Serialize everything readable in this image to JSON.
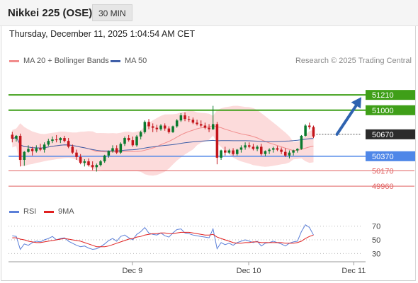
{
  "header": {
    "title": "Nikkei 225 (OSE)",
    "interval": "30 MIN"
  },
  "timestamp": "Thursday, December 11, 2025 1:04:54 AM CET",
  "legend": {
    "bollinger": "MA 20 + Bollinger Bands",
    "ma50": "MA 50",
    "credit": "Research © 2025 Trading Central",
    "rsi": "RSI",
    "rsi_ma": "9MA"
  },
  "colors": {
    "candle_up": "#0a7a2e",
    "candle_down": "#c3151b",
    "band_fill": "#fbd5d5",
    "ma20": "#f18c8c",
    "ma50": "#3f5fa8",
    "resistance": "#3f9f18",
    "pivot": "#4f87e8",
    "support": "#e06060",
    "arrow": "#2f63b0",
    "rsi": "#5b7fd8",
    "rsi_ma": "#e02020"
  },
  "chart_data": [
    {
      "type": "candlestick",
      "ylim": [
        49700,
        51560
      ],
      "xlim": [
        0,
        94
      ],
      "x_tick_labels": [
        {
          "x": 33,
          "label": "Dec 9"
        },
        {
          "x": 64,
          "label": "Dec 10"
        },
        {
          "x": 92,
          "label": "Dec 11"
        }
      ],
      "candles": [
        [
          50665,
          50705,
          50560,
          50610
        ],
        [
          50610,
          50660,
          50570,
          50650
        ],
        [
          50650,
          50680,
          50230,
          50320
        ],
        [
          50320,
          50440,
          50240,
          50430
        ],
        [
          50430,
          50520,
          50420,
          50470
        ],
        [
          50470,
          50500,
          50380,
          50440
        ],
        [
          50440,
          50520,
          50420,
          50480
        ],
        [
          50480,
          50540,
          50440,
          50460
        ],
        [
          50460,
          50560,
          50420,
          50530
        ],
        [
          50530,
          50610,
          50510,
          50580
        ],
        [
          50580,
          50640,
          50550,
          50600
        ],
        [
          50600,
          50660,
          50560,
          50590
        ],
        [
          50590,
          50630,
          50550,
          50620
        ],
        [
          50620,
          50650,
          50560,
          50580
        ],
        [
          50580,
          50620,
          50480,
          50500
        ],
        [
          50500,
          50530,
          50400,
          50420
        ],
        [
          50420,
          50460,
          50320,
          50360
        ],
        [
          50360,
          50400,
          50260,
          50280
        ],
        [
          50280,
          50330,
          50230,
          50300
        ],
        [
          50300,
          50340,
          50230,
          50250
        ],
        [
          50250,
          50300,
          50180,
          50220
        ],
        [
          50220,
          50270,
          50160,
          50250
        ],
        [
          50250,
          50320,
          50230,
          50300
        ],
        [
          50300,
          50390,
          50280,
          50380
        ],
        [
          50380,
          50450,
          50350,
          50440
        ],
        [
          50440,
          50520,
          50420,
          50480
        ],
        [
          50480,
          50520,
          50400,
          50420
        ],
        [
          50420,
          50560,
          50400,
          50540
        ],
        [
          50540,
          50640,
          50510,
          50620
        ],
        [
          50620,
          50660,
          50570,
          50590
        ],
        [
          50590,
          50640,
          50500,
          50520
        ],
        [
          50520,
          50660,
          50500,
          50640
        ],
        [
          50640,
          50720,
          50600,
          50700
        ],
        [
          50700,
          50860,
          50680,
          50840
        ],
        [
          50840,
          50880,
          50740,
          50780
        ],
        [
          50780,
          50820,
          50700,
          50760
        ],
        [
          50760,
          50800,
          50700,
          50740
        ],
        [
          50740,
          50810,
          50720,
          50790
        ],
        [
          50790,
          50820,
          50720,
          50750
        ],
        [
          50750,
          50780,
          50680,
          50700
        ],
        [
          50700,
          50790,
          50690,
          50780
        ],
        [
          50780,
          50880,
          50760,
          50860
        ],
        [
          50860,
          50960,
          50840,
          50930
        ],
        [
          50930,
          50970,
          50850,
          50880
        ],
        [
          50880,
          50920,
          50840,
          50870
        ],
        [
          50870,
          50900,
          50810,
          50830
        ],
        [
          50830,
          50870,
          50790,
          50810
        ],
        [
          50810,
          50860,
          50770,
          50790
        ],
        [
          50790,
          50830,
          50740,
          50760
        ],
        [
          50760,
          50810,
          50700,
          50740
        ],
        [
          50740,
          51060,
          50730,
          50810
        ],
        [
          50810,
          50840,
          50260,
          50350
        ],
        [
          50350,
          50460,
          50320,
          50450
        ],
        [
          50450,
          50500,
          50380,
          50420
        ],
        [
          50420,
          50470,
          50400,
          50450
        ],
        [
          50450,
          50480,
          50380,
          50400
        ],
        [
          50400,
          50470,
          50380,
          50460
        ],
        [
          50460,
          50520,
          50420,
          50490
        ],
        [
          50490,
          50560,
          50460,
          50520
        ],
        [
          50520,
          50560,
          50480,
          50500
        ],
        [
          50500,
          50540,
          50450,
          50470
        ],
        [
          50470,
          50520,
          50440,
          50500
        ],
        [
          50500,
          50540,
          50380,
          50400
        ],
        [
          50400,
          50450,
          50370,
          50440
        ],
        [
          50440,
          50480,
          50400,
          50460
        ],
        [
          50460,
          50500,
          50420,
          50480
        ],
        [
          50480,
          50510,
          50440,
          50460
        ],
        [
          50460,
          50490,
          50400,
          50430
        ],
        [
          50430,
          50480,
          50360,
          50380
        ],
        [
          50380,
          50450,
          50340,
          50420
        ],
        [
          50420,
          50460,
          50380,
          50450
        ],
        [
          50450,
          50480,
          50420,
          50470
        ],
        [
          50470,
          50660,
          50460,
          50650
        ],
        [
          50650,
          50810,
          50640,
          50790
        ],
        [
          50790,
          50830,
          50740,
          50770
        ],
        [
          50770,
          50790,
          50620,
          50640
        ]
      ],
      "candle_x_start": 1,
      "candle_x_step": 1.07,
      "horizontal_levels": [
        {
          "value": 51210,
          "label": "51210",
          "kind": "resistance"
        },
        {
          "value": 51000,
          "label": "51000",
          "kind": "resistance"
        },
        {
          "value": 50670,
          "label": "50670",
          "kind": "pivot"
        },
        {
          "value": 50370,
          "label": "50370",
          "kind": "support-strong"
        },
        {
          "value": 50170,
          "label": "50170",
          "kind": "support"
        },
        {
          "value": 49960,
          "label": "49960",
          "kind": "support"
        }
      ],
      "forecast_arrow": {
        "from": {
          "x": 87.5,
          "y": 50670
        },
        "to": {
          "x": 94,
          "y": 51180
        }
      },
      "series": [
        {
          "name": "MA 20 + Bollinger Bands"
        },
        {
          "name": "MA 50"
        }
      ]
    },
    {
      "type": "line",
      "ylim": [
        20,
        80
      ],
      "y_tick_labels": [
        70,
        50,
        30
      ],
      "series": [
        {
          "name": "RSI",
          "values": [
            56,
            55,
            36,
            44,
            42,
            46,
            48,
            47,
            50,
            52,
            55,
            50,
            52,
            53,
            48,
            45,
            42,
            40,
            41,
            38,
            36,
            37,
            40,
            44,
            49,
            52,
            48,
            55,
            57,
            53,
            50,
            58,
            62,
            68,
            60,
            58,
            57,
            60,
            56,
            54,
            60,
            65,
            66,
            60,
            59,
            57,
            56,
            55,
            54,
            53,
            66,
            37,
            46,
            43,
            45,
            42,
            46,
            48,
            50,
            48,
            46,
            48,
            41,
            45,
            46,
            48,
            46,
            44,
            41,
            45,
            47,
            48,
            62,
            72,
            68,
            57
          ]
        },
        {
          "name": "9MA",
          "values": [
            53,
            53,
            51,
            50,
            48,
            47,
            46,
            46,
            47,
            48,
            49,
            50,
            51,
            52,
            51,
            50,
            49,
            48,
            46,
            44,
            42,
            40,
            40,
            40,
            41,
            43,
            45,
            47,
            49,
            51,
            52,
            54,
            55,
            57,
            58,
            59,
            59,
            60,
            60,
            59,
            59,
            60,
            61,
            61,
            61,
            60,
            59,
            58,
            57,
            57,
            58,
            54,
            52,
            50,
            48,
            46,
            45,
            45,
            46,
            46,
            47,
            47,
            46,
            46,
            46,
            46,
            46,
            46,
            45,
            45,
            45,
            46,
            48,
            52,
            55,
            57
          ]
        }
      ]
    }
  ]
}
